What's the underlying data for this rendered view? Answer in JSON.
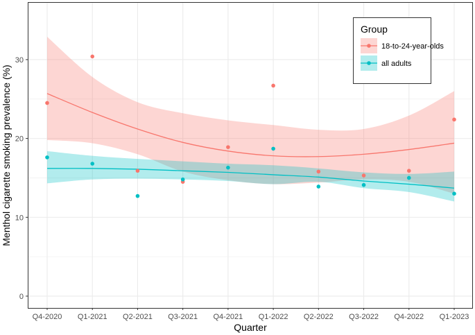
{
  "chart_data": {
    "type": "scatter",
    "title": "",
    "xlabel": "Quarter",
    "ylabel": "Menthol cigarette smoking prevalence (%)",
    "categories": [
      "Q4-2020",
      "Q1-2021",
      "Q2-2021",
      "Q3-2021",
      "Q4-2021",
      "Q1-2022",
      "Q2-2022",
      "Q3-2022",
      "Q4-2022",
      "Q1-2023"
    ],
    "ylim": [
      -1.5,
      37.3
    ],
    "yticks": [
      0,
      10,
      20,
      30
    ],
    "grid": true,
    "legend": {
      "title": "Group",
      "position": "top-right"
    },
    "series": [
      {
        "name": "18-to-24-year-olds",
        "color": "#F8766D",
        "band_color": "#F8766D",
        "points": [
          24.5,
          30.4,
          15.9,
          14.5,
          18.9,
          26.7,
          15.8,
          15.3,
          15.9,
          22.4
        ],
        "smooth": [
          25.7,
          23.3,
          21.2,
          19.5,
          18.4,
          17.8,
          17.7,
          18.0,
          18.6,
          19.4
        ],
        "ci_lower": [
          19.8,
          19.4,
          18.0,
          15.8,
          14.7,
          14.2,
          14.4,
          14.8,
          14.5,
          13.0
        ],
        "ci_upper": [
          32.9,
          27.8,
          24.6,
          23.2,
          22.3,
          21.7,
          21.1,
          21.2,
          22.9,
          26.0
        ]
      },
      {
        "name": "all adults",
        "color": "#00BFC4",
        "band_color": "#00BFC4",
        "points": [
          17.6,
          16.8,
          12.7,
          14.8,
          16.3,
          18.7,
          13.9,
          14.1,
          15.0,
          13.0
        ],
        "smooth": [
          16.2,
          16.2,
          16.1,
          15.9,
          15.7,
          15.4,
          15.1,
          14.6,
          14.2,
          13.7
        ],
        "ci_lower": [
          14.3,
          14.8,
          14.9,
          14.8,
          14.6,
          14.2,
          14.5,
          13.7,
          13.2,
          12.0
        ],
        "ci_upper": [
          18.4,
          17.8,
          17.4,
          17.1,
          16.8,
          16.6,
          16.2,
          15.7,
          15.5,
          15.8
        ]
      }
    ]
  }
}
